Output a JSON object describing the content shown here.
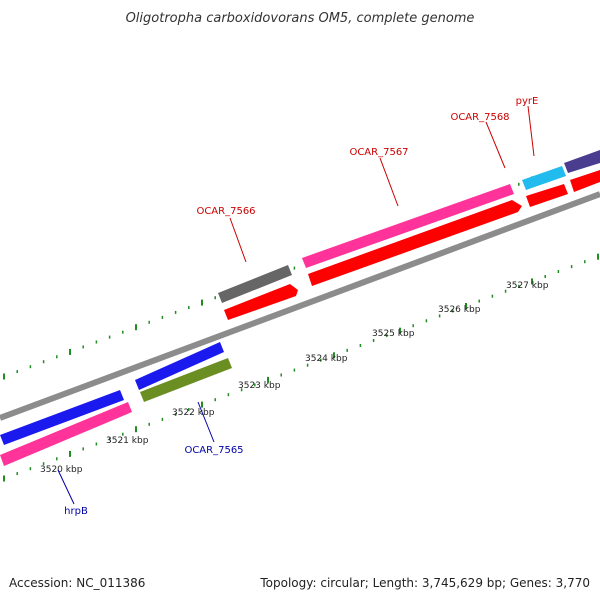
{
  "title": "Oligotropha carboxidovorans OM5, complete genome",
  "footer": {
    "accession": "Accession: NC_011386",
    "info": "Topology: circular; Length: 3,745,629 bp; Genes: 3,770"
  },
  "ticks": [
    "3520 kbp",
    "3521 kbp",
    "3522 kbp",
    "3523 kbp",
    "3524 kbp",
    "3525 kbp",
    "3526 kbp",
    "3527 kbp"
  ],
  "gene_labels": [
    {
      "name": "OCAR_7566",
      "color": "#cc0000"
    },
    {
      "name": "OCAR_7567",
      "color": "#cc0000"
    },
    {
      "name": "OCAR_7568",
      "color": "#cc0000"
    },
    {
      "name": "pyrE",
      "color": "#cc0000"
    },
    {
      "name": "OCAR_7565",
      "color": "#0000aa"
    },
    {
      "name": "hrpB",
      "color": "#0000aa"
    }
  ],
  "colors": {
    "backbone": "#8c8c8c",
    "cds": "#ff0000",
    "gene_magenta": "#ff3399",
    "gene_blue": "#1a1aee",
    "gene_olive": "#6b8e23",
    "gene_gray": "#666666",
    "gene_cyan": "#22bbee",
    "gene_navy": "#4a3d8f",
    "tick": "#228b22"
  }
}
